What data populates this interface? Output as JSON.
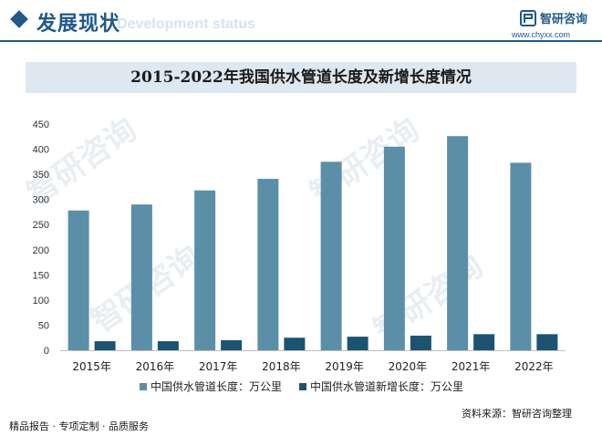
{
  "header": {
    "title": "发展现状",
    "subtitle": "Development status",
    "brand": "智研咨询",
    "url": "www.chyxx.com"
  },
  "watermark_text": "智研咨询",
  "footer": {
    "left": "精品报告 · 专项定制 · 品质服务",
    "source": "资料来源：智研咨询整理"
  },
  "colors": {
    "series1": "#5b8fa8",
    "series2": "#1b5473",
    "brand": "#1f5a8a",
    "title_bg": "#dde8f1"
  },
  "chart_data": {
    "type": "bar",
    "title": "2015-2022年我国供水管道长度及新增长度情况",
    "categories": [
      "2015年",
      "2016年",
      "2017年",
      "2018年",
      "2019年",
      "2020年",
      "2021年",
      "2022年"
    ],
    "series": [
      {
        "name": "中国供水管道长度：万公里",
        "values": [
          278,
          290,
          318,
          341,
          375,
          405,
          426,
          373
        ]
      },
      {
        "name": "中国供水管道新增长度：万公里",
        "values": [
          18,
          18,
          20,
          25,
          27,
          29,
          32,
          32
        ]
      }
    ],
    "ylim": [
      0,
      450
    ],
    "yticks": [
      0,
      50,
      100,
      150,
      200,
      250,
      300,
      350,
      400,
      450
    ],
    "legend": "bottom"
  }
}
